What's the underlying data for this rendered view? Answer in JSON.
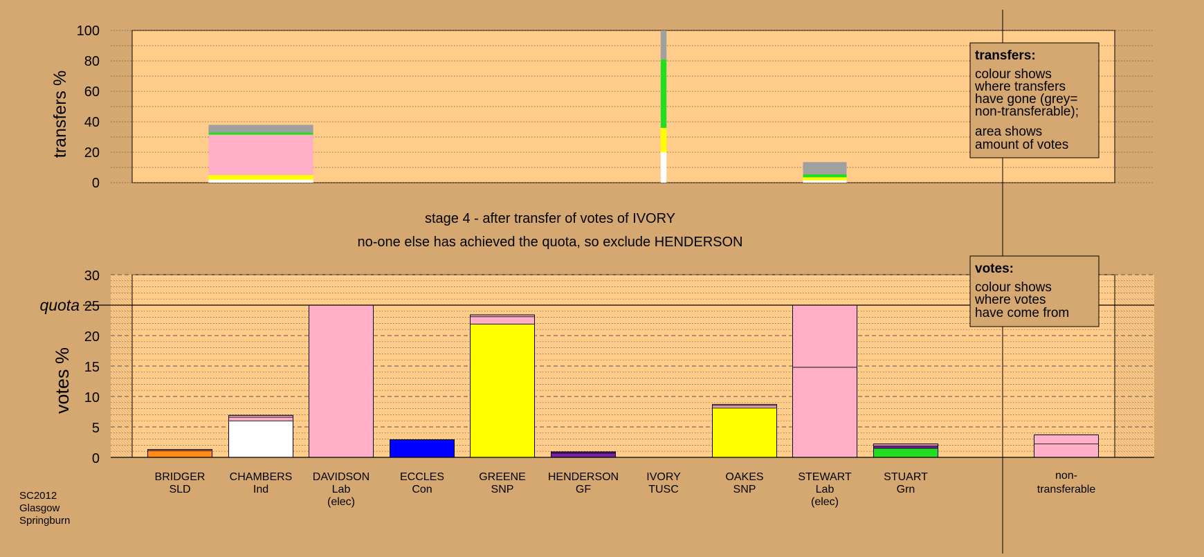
{
  "colors": {
    "background": "#d4a870",
    "plot_background": "#ffcc8a",
    "non_transferable_grey": "#a0a0a0"
  },
  "captions": {
    "stage_line": "stage 4 - after transfer of votes of IVORY",
    "note_line": "no-one else has achieved the quota, so exclude HENDERSON"
  },
  "footnote": [
    "SC2012",
    "Glasgow",
    "Springburn"
  ],
  "transfers_legend": {
    "title": "transfers:",
    "lines_a": [
      "colour shows",
      "where transfers",
      "have gone (grey=",
      "non-transferable);"
    ],
    "lines_b": [
      "area shows",
      "amount of votes"
    ]
  },
  "votes_legend": {
    "title": "votes:",
    "lines": [
      "colour shows",
      "where votes",
      "have come from"
    ]
  },
  "candidates": [
    {
      "name": "BRIDGER",
      "party": "SLD",
      "status": "",
      "color": "#ff8c1a"
    },
    {
      "name": "CHAMBERS",
      "party": "Ind",
      "status": "",
      "color": "#ffffff"
    },
    {
      "name": "DAVIDSON",
      "party": "Lab",
      "status": "(elec)",
      "color": "#ffb0c8"
    },
    {
      "name": "ECCLES",
      "party": "Con",
      "status": "",
      "color": "#0000ff"
    },
    {
      "name": "GREENE",
      "party": "SNP",
      "status": "",
      "color": "#ffff00"
    },
    {
      "name": "HENDERSON",
      "party": "GF",
      "status": "",
      "color": "#7a1fa8"
    },
    {
      "name": "IVORY",
      "party": "TUSC",
      "status": "",
      "color": "#ff3030"
    },
    {
      "name": "OAKES",
      "party": "SNP",
      "status": "",
      "color": "#ffff00"
    },
    {
      "name": "STEWART",
      "party": "Lab",
      "status": "(elec)",
      "color": "#ffb0c8"
    },
    {
      "name": "STUART",
      "party": "Grn",
      "status": "",
      "color": "#22dd22"
    }
  ],
  "nontransferable_label": [
    "non-",
    "transferable"
  ],
  "chart_data": [
    {
      "type": "bar",
      "ylabel": "transfers %",
      "ylim": [
        0,
        100
      ],
      "yticks": [
        0,
        20,
        40,
        60,
        80,
        100
      ],
      "bars": [
        {
          "candidate": "CHAMBERS",
          "width_fraction": 0.36,
          "segments": [
            {
              "color": "#ffffff",
              "value": 2
            },
            {
              "color": "#ffff00",
              "value": 3
            },
            {
              "color": "#ffb0c8",
              "value": 1
            },
            {
              "color": "#ffb0c8",
              "value": 25.5
            },
            {
              "color": "#22dd22",
              "value": 1.5
            },
            {
              "color": "#a0a0a0",
              "value": 5
            }
          ]
        },
        {
          "candidate": "IVORY",
          "width_fraction": 0.02,
          "segments": [
            {
              "color": "#ffffff",
              "value": 20
            },
            {
              "color": "#ffff00",
              "value": 16
            },
            {
              "color": "#22dd22",
              "value": 45
            },
            {
              "color": "#a0a0a0",
              "value": 19
            }
          ]
        },
        {
          "candidate": "STEWART",
          "width_fraction": 0.15,
          "segments": [
            {
              "color": "#ffffff",
              "value": 1.5
            },
            {
              "color": "#ffff00",
              "value": 2
            },
            {
              "color": "#22dd22",
              "value": 2
            },
            {
              "color": "#a0a0a0",
              "value": 8
            }
          ]
        }
      ]
    },
    {
      "type": "bar",
      "ylabel": "votes %",
      "ylim": [
        0,
        30
      ],
      "yticks": [
        0,
        5,
        10,
        15,
        20,
        25,
        30
      ],
      "quota": 25,
      "quota_label": "quota",
      "bars": [
        {
          "candidate": "BRIDGER",
          "segments": [
            {
              "color": "#ff8c1a",
              "value": 1.1
            },
            {
              "color": "#ff8c1a",
              "value": 0.2
            }
          ]
        },
        {
          "candidate": "CHAMBERS",
          "segments": [
            {
              "color": "#ffffff",
              "value": 6.0
            },
            {
              "color": "#ffb0c8",
              "value": 0.6
            },
            {
              "color": "#ffb0c8",
              "value": 0.3
            }
          ]
        },
        {
          "candidate": "DAVIDSON",
          "segments": [
            {
              "color": "#ffb0c8",
              "value": 25.0
            }
          ]
        },
        {
          "candidate": "ECCLES",
          "segments": [
            {
              "color": "#0000ff",
              "value": 2.9
            }
          ]
        },
        {
          "candidate": "GREENE",
          "segments": [
            {
              "color": "#ffff00",
              "value": 21.9
            },
            {
              "color": "#ffb0c8",
              "value": 1.2
            },
            {
              "color": "#ffb0c8",
              "value": 0.3
            }
          ]
        },
        {
          "candidate": "HENDERSON",
          "segments": [
            {
              "color": "#7a1fa8",
              "value": 0.7
            },
            {
              "color": "#7a1fa8",
              "value": 0.2
            }
          ]
        },
        {
          "candidate": "IVORY",
          "segments": []
        },
        {
          "candidate": "OAKES",
          "segments": [
            {
              "color": "#ffff00",
              "value": 8.1
            },
            {
              "color": "#ffb0c8",
              "value": 0.4
            },
            {
              "color": "#ffb0c8",
              "value": 0.2
            }
          ]
        },
        {
          "candidate": "STEWART",
          "segments": [
            {
              "color": "#ffb0c8",
              "value": 14.8
            },
            {
              "color": "#ffb0c8",
              "value": 10.2
            }
          ]
        },
        {
          "candidate": "STUART",
          "segments": [
            {
              "color": "#22dd22",
              "value": 1.5
            },
            {
              "color": "#7a1fa8",
              "value": 0.4
            },
            {
              "color": "#ffb0c8",
              "value": 0.3
            }
          ]
        },
        {
          "candidate": "non-transferable",
          "segments": [
            {
              "color": "#ffb0c8",
              "value": 2.2
            },
            {
              "color": "#ffb0c8",
              "value": 1.5
            }
          ]
        }
      ]
    }
  ]
}
